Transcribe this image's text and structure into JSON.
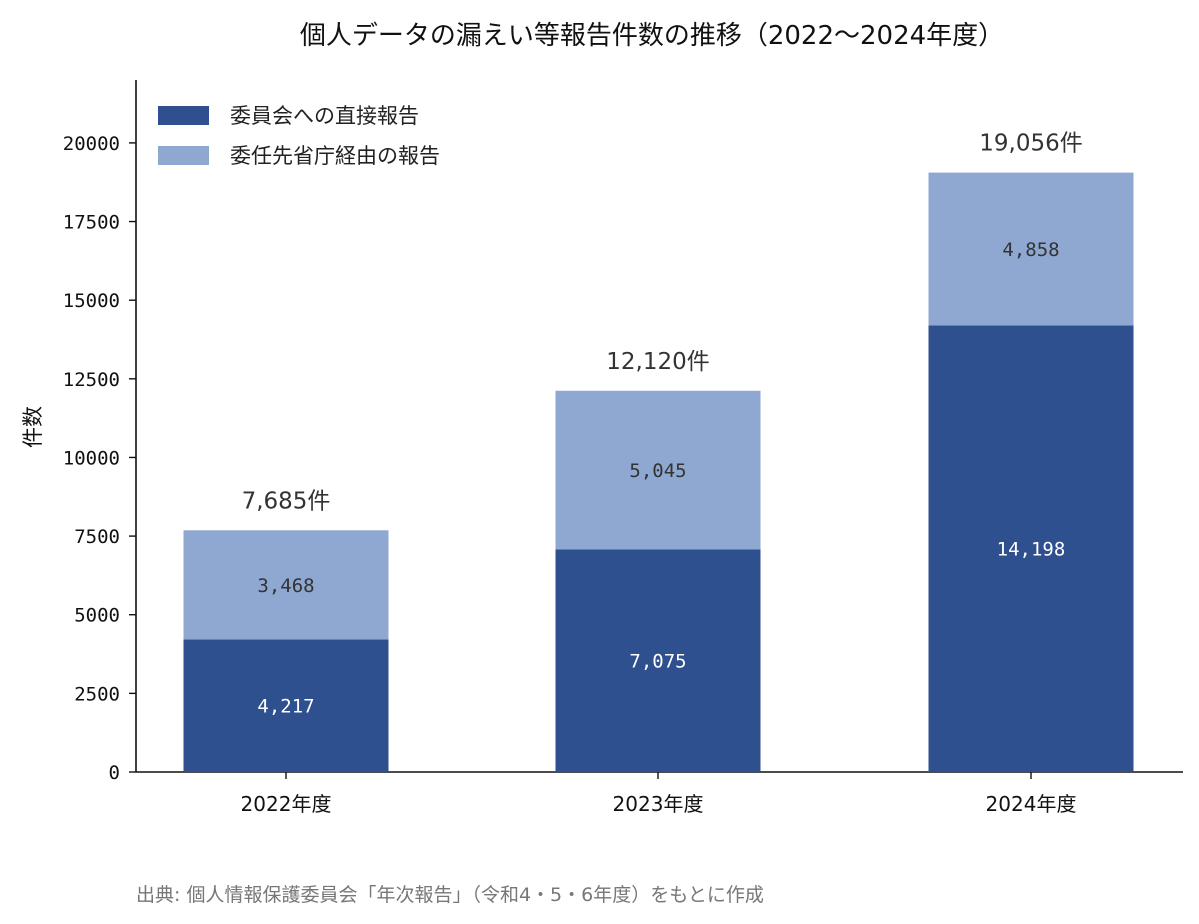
{
  "chart_data": {
    "type": "bar",
    "stacked": true,
    "title": "個人データの漏えい等報告件数の推移（2022～2024年度）",
    "ylabel": "件数",
    "xlabel": "",
    "ylim": [
      0,
      22000
    ],
    "yticks": [
      0,
      2500,
      5000,
      7500,
      10000,
      12500,
      15000,
      17500,
      20000
    ],
    "categories": [
      "2022年度",
      "2023年度",
      "2024年度"
    ],
    "series": [
      {
        "name": "委員会への直接報告",
        "values": [
          4217,
          7075,
          14198
        ],
        "color": "#2e508e",
        "labels": [
          "4,217",
          "7,075",
          "14,198"
        ],
        "label_color": "#ffffff"
      },
      {
        "name": "委任先省庁経由の報告",
        "values": [
          3468,
          5045,
          4858
        ],
        "color": "#8fa8d2",
        "labels": [
          "3,468",
          "5,045",
          "4,858"
        ],
        "label_color": "#333333"
      }
    ],
    "totals": [
      7685,
      12120,
      19056
    ],
    "total_labels": [
      "7,685件",
      "12,120件",
      "19,056件"
    ],
    "legend_position": "top-left",
    "grid": false,
    "source": "出典: 個人情報保護委員会「年次報告」（令和4・5・6年度）をもとに作成"
  }
}
